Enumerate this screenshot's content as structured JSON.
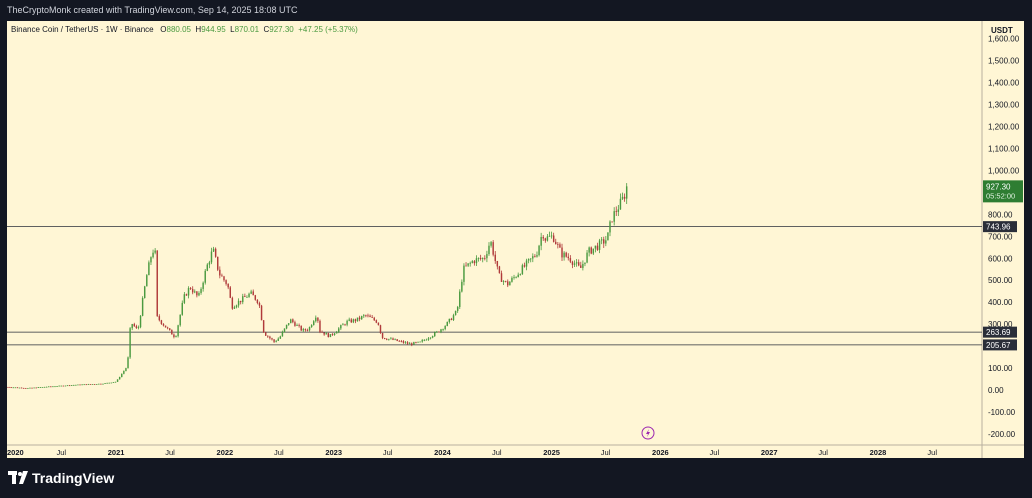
{
  "header": {
    "attribution": "TheCryptoMonk created with TradingView.com, Sep 14, 2025 18:08 UTC"
  },
  "legend": {
    "symbol": "Binance Coin / TetherUS · 1W · Binance",
    "o_label": "O",
    "o": "880.05",
    "h_label": "H",
    "h": "944.95",
    "l_label": "L",
    "l": "870.01",
    "c_label": "C",
    "c": "927.30",
    "change": "+47.25 (+5.37%)"
  },
  "footer": {
    "brand": "TradingView",
    "logo_icon": "tradingview-logo-icon"
  },
  "colors": {
    "up": "#4b9a40",
    "down": "#b03a3a",
    "bg": "#fff6d5",
    "accent": "#2e7d32"
  },
  "chart_data": {
    "type": "candlestick",
    "interval": "1W",
    "unit": "USDT",
    "y_ticks": [
      -200,
      -100,
      0,
      100,
      200,
      300,
      400,
      500,
      600,
      700,
      800,
      1000,
      1100,
      1200,
      1300,
      1400,
      1500,
      1600
    ],
    "y_tick_labels": [
      "-200.00",
      "-100.00",
      "0.00",
      "100.00",
      "200.00",
      "300.00",
      "400.00",
      "500.00",
      "600.00",
      "700.00",
      "800.00",
      "1,000.00",
      "1,100.00",
      "1,200.00",
      "1,300.00",
      "1,400.00",
      "1,500.00",
      "1,600.00"
    ],
    "ylim": [
      -250,
      1680
    ],
    "x_ticks": [
      {
        "date": "2020-01-01",
        "label": "2020",
        "bold": true
      },
      {
        "date": "2020-07-01",
        "label": "Jul",
        "bold": false
      },
      {
        "date": "2021-01-01",
        "label": "2021",
        "bold": true
      },
      {
        "date": "2021-07-01",
        "label": "Jul",
        "bold": false
      },
      {
        "date": "2022-01-01",
        "label": "2022",
        "bold": true
      },
      {
        "date": "2022-07-01",
        "label": "Jul",
        "bold": false
      },
      {
        "date": "2023-01-01",
        "label": "2023",
        "bold": true
      },
      {
        "date": "2023-07-01",
        "label": "Jul",
        "bold": false
      },
      {
        "date": "2024-01-01",
        "label": "2024",
        "bold": true
      },
      {
        "date": "2024-07-01",
        "label": "Jul",
        "bold": false
      },
      {
        "date": "2025-01-01",
        "label": "2025",
        "bold": true
      },
      {
        "date": "2025-07-01",
        "label": "Jul",
        "bold": false
      },
      {
        "date": "2026-01-01",
        "label": "2026",
        "bold": true
      },
      {
        "date": "2026-07-01",
        "label": "Jul",
        "bold": false
      },
      {
        "date": "2027-01-01",
        "label": "2027",
        "bold": true
      },
      {
        "date": "2027-07-01",
        "label": "Jul",
        "bold": false
      },
      {
        "date": "2028-01-01",
        "label": "2028",
        "bold": true
      },
      {
        "date": "2028-07-01",
        "label": "Jul",
        "bold": false
      }
    ],
    "xlim": [
      "2020-01-01",
      "2028-12-15"
    ],
    "horizontal_lines": [
      {
        "value": 743.96,
        "label": "743.96"
      },
      {
        "value": 263.69,
        "label": "263.69"
      },
      {
        "value": 205.67,
        "label": "205.67"
      }
    ],
    "last_price": {
      "value": 927.3,
      "label": "927.30",
      "countdown": "05:52:00"
    },
    "price_path": [
      [
        "2020-01-01",
        14
      ],
      [
        "2020-03-12",
        9
      ],
      [
        "2020-06-01",
        17
      ],
      [
        "2020-09-01",
        25
      ],
      [
        "2020-11-15",
        29
      ],
      [
        "2021-01-01",
        38
      ],
      [
        "2021-02-08",
        110
      ],
      [
        "2021-02-19",
        310
      ],
      [
        "2021-03-15",
        270
      ],
      [
        "2021-04-12",
        510
      ],
      [
        "2021-05-03",
        640
      ],
      [
        "2021-05-12",
        620
      ],
      [
        "2021-05-19",
        330
      ],
      [
        "2021-06-21",
        280
      ],
      [
        "2021-07-19",
        240
      ],
      [
        "2021-08-16",
        420
      ],
      [
        "2021-09-06",
        470
      ],
      [
        "2021-10-04",
        420
      ],
      [
        "2021-11-01",
        560
      ],
      [
        "2021-11-22",
        640
      ],
      [
        "2021-12-13",
        530
      ],
      [
        "2022-01-10",
        480
      ],
      [
        "2022-01-24",
        380
      ],
      [
        "2022-03-28",
        440
      ],
      [
        "2022-04-25",
        400
      ],
      [
        "2022-05-12",
        260
      ],
      [
        "2022-06-15",
        220
      ],
      [
        "2022-07-04",
        240
      ],
      [
        "2022-08-08",
        320
      ],
      [
        "2022-09-19",
        270
      ],
      [
        "2022-10-10",
        280
      ],
      [
        "2022-11-06",
        350
      ],
      [
        "2022-11-14",
        270
      ],
      [
        "2022-12-19",
        245
      ],
      [
        "2023-02-13",
        310
      ],
      [
        "2023-03-20",
        320
      ],
      [
        "2023-04-17",
        340
      ],
      [
        "2023-05-29",
        310
      ],
      [
        "2023-06-12",
        240
      ],
      [
        "2023-08-14",
        220
      ],
      [
        "2023-09-11",
        210
      ],
      [
        "2023-10-16",
        215
      ],
      [
        "2023-11-20",
        245
      ],
      [
        "2023-12-11",
        260
      ],
      [
        "2024-01-15",
        300
      ],
      [
        "2024-02-19",
        360
      ],
      [
        "2024-03-11",
        550
      ],
      [
        "2024-04-15",
        590
      ],
      [
        "2024-05-20",
        600
      ],
      [
        "2024-06-10",
        680
      ],
      [
        "2024-07-08",
        520
      ],
      [
        "2024-08-05",
        480
      ],
      [
        "2024-09-02",
        520
      ],
      [
        "2024-10-07",
        570
      ],
      [
        "2024-11-11",
        620
      ],
      [
        "2024-12-02",
        720
      ],
      [
        "2024-12-09",
        690
      ],
      [
        "2025-01-06",
        700
      ],
      [
        "2025-02-03",
        620
      ],
      [
        "2025-03-03",
        600
      ],
      [
        "2025-04-07",
        550
      ],
      [
        "2025-05-05",
        630
      ],
      [
        "2025-06-09",
        660
      ],
      [
        "2025-07-07",
        690
      ],
      [
        "2025-07-21",
        780
      ],
      [
        "2025-08-11",
        830
      ],
      [
        "2025-08-25",
        860
      ],
      [
        "2025-09-14",
        927.3
      ]
    ]
  }
}
